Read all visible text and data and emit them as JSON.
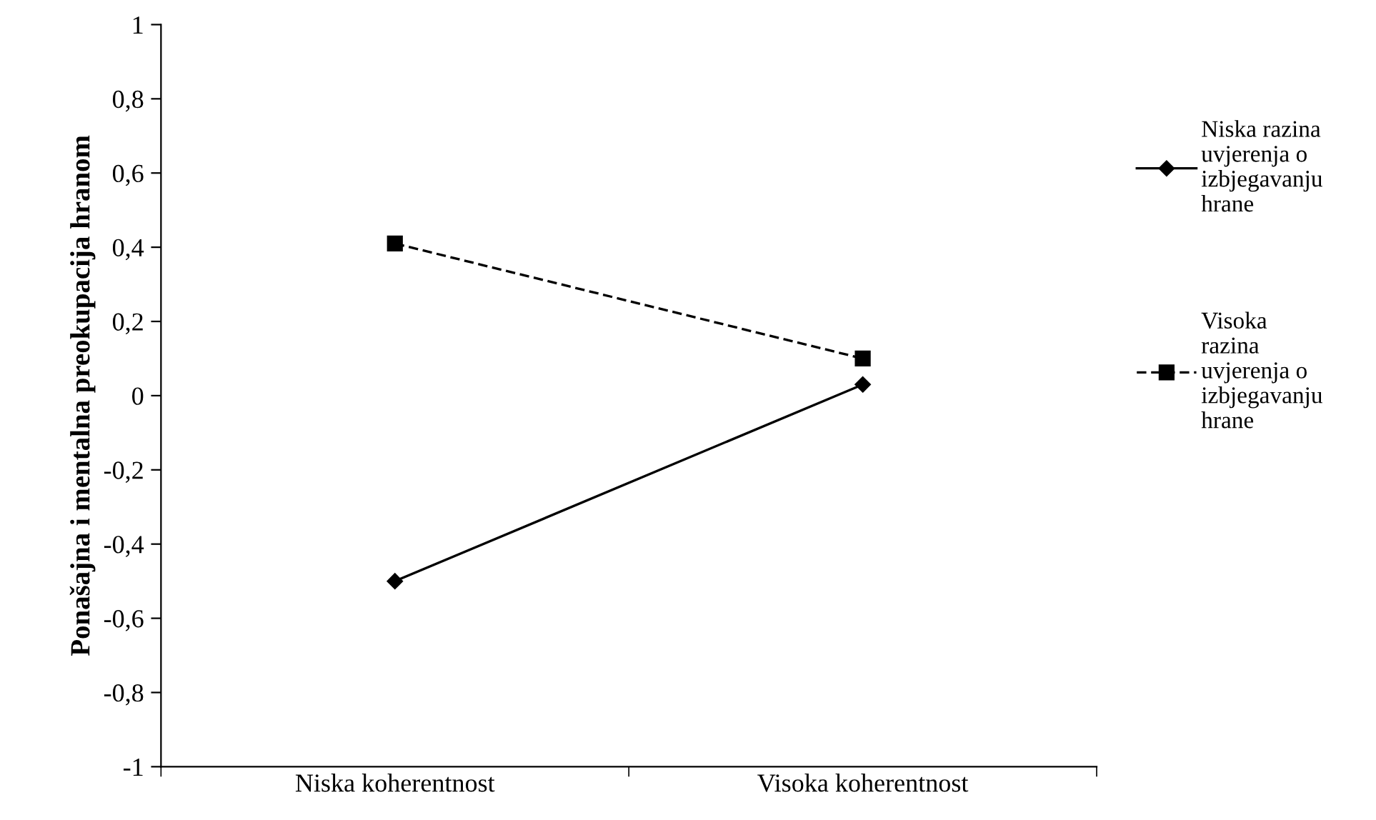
{
  "chart_data": {
    "type": "line",
    "ylabel": "Ponašajna i mentalna preokupacija hranom",
    "categories": [
      "Niska koherentnost",
      "Visoka koherentnost"
    ],
    "series": [
      {
        "name": "Niska razina\nuvjerenja o\nizbjegavanju\nhrane",
        "color": "#000000",
        "values": [
          -0.5,
          0.03
        ],
        "marker": "diamond",
        "line_style": "solid"
      },
      {
        "name": "Visoka\nrazina\nuvjerenja o\nizbjegavanju\nhrane",
        "color": "#000000",
        "values": [
          0.41,
          0.1
        ],
        "marker": "square",
        "line_style": "dashed"
      }
    ],
    "ylim": [
      -1,
      1
    ],
    "yticks": [
      {
        "value": -1,
        "label": "-1"
      },
      {
        "value": -0.8,
        "label": "-0,8"
      },
      {
        "value": -0.6,
        "label": "-0,6"
      },
      {
        "value": -0.4,
        "label": "-0,4"
      },
      {
        "value": -0.2,
        "label": "-0,2"
      },
      0,
      {
        "value": 0.2,
        "label": "0,2"
      },
      {
        "value": 0.4,
        "label": "0,4"
      },
      {
        "value": 0.6,
        "label": "0,6"
      },
      {
        "value": 0.8,
        "label": "0,8"
      },
      1
    ],
    "grid": false,
    "legend": "right"
  }
}
